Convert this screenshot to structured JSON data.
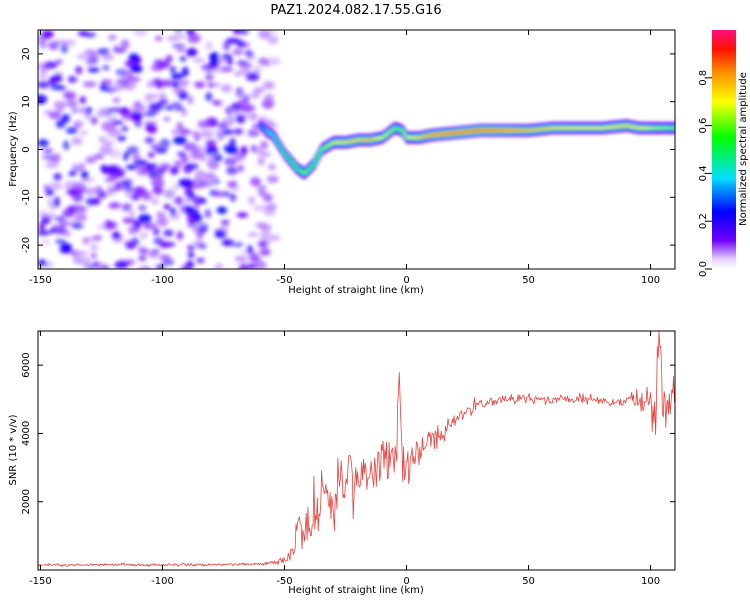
{
  "figure": {
    "title": "PAZ1.2024.082.17.55.G16"
  },
  "chart_data": [
    {
      "type": "heatmap",
      "name": "spectrogram",
      "xlabel": "Height of straight line (km)",
      "ylabel": "Frequency (Hz)",
      "xlim": [
        -151,
        110
      ],
      "ylim": [
        -25,
        25
      ],
      "xticks": [
        -150,
        -100,
        -50,
        0,
        50,
        100
      ],
      "yticks": [
        -20,
        -10,
        0,
        10,
        20
      ],
      "colorbar": {
        "label": "Normalized spectral amplitude",
        "range": [
          0,
          1
        ],
        "ticks": [
          0.0,
          0.2,
          0.4,
          0.6,
          0.8
        ],
        "colormap": [
          "#ffffff",
          "#7000ff",
          "#0000ff",
          "#00ffff",
          "#00ff00",
          "#ffff00",
          "#ff8000",
          "#ff0000",
          "#ff0080"
        ]
      },
      "noise_region": {
        "x_from": -150,
        "x_to": -53,
        "peak_amplitude": 0.25
      },
      "ridge": {
        "x": [
          -60,
          -55,
          -50,
          -45,
          -42,
          -38,
          -35,
          -30,
          -25,
          -20,
          -15,
          -10,
          -5,
          -2,
          0,
          5,
          10,
          20,
          30,
          40,
          50,
          60,
          70,
          80,
          90,
          95,
          100,
          110
        ],
        "frequency": [
          5,
          3,
          -1,
          -4,
          -5,
          -3,
          0,
          1.5,
          1.5,
          2,
          2,
          2.5,
          4.5,
          4,
          2.5,
          2.5,
          3,
          3.5,
          4,
          4,
          4,
          4.5,
          4.5,
          4.5,
          5,
          4.5,
          4.5,
          4.5
        ],
        "amplitude": [
          0.3,
          0.4,
          0.45,
          0.5,
          0.55,
          0.5,
          0.55,
          0.6,
          0.7,
          0.7,
          0.75,
          0.6,
          0.55,
          0.55,
          0.6,
          0.7,
          0.8,
          0.9,
          0.9,
          0.85,
          0.75,
          0.7,
          0.65,
          0.65,
          0.7,
          0.65,
          0.6,
          0.55
        ]
      }
    },
    {
      "type": "line",
      "name": "snr",
      "xlabel": "Height of straight line (km)",
      "ylabel": "SNR (10 * v/v)",
      "xlim": [
        -151,
        110
      ],
      "ylim": [
        0,
        7000
      ],
      "xticks": [
        -150,
        -100,
        -50,
        0,
        50,
        100
      ],
      "yticks": [
        2000,
        4000,
        6000
      ],
      "color": "#e8423d",
      "series": [
        {
          "x": [
            -151,
            -140,
            -130,
            -120,
            -110,
            -100,
            -90,
            -80,
            -70,
            -60,
            -55,
            -50,
            -47,
            -45,
            -43,
            -40,
            -38,
            -35,
            -32,
            -30,
            -28,
            -25,
            -22,
            -20,
            -18,
            -15,
            -12,
            -10,
            -8,
            -6,
            -4,
            -3,
            -2,
            0,
            2,
            5,
            8,
            10,
            15,
            20,
            25,
            30,
            35,
            40,
            45,
            50,
            55,
            60,
            65,
            70,
            75,
            80,
            85,
            90,
            93,
            95,
            97,
            100,
            102,
            103,
            105,
            107,
            110
          ],
          "y": [
            150,
            150,
            150,
            150,
            150,
            140,
            160,
            150,
            170,
            180,
            220,
            300,
            600,
            1100,
            1500,
            1200,
            1600,
            1900,
            2000,
            2100,
            2300,
            2500,
            2600,
            2700,
            2800,
            2900,
            3000,
            3100,
            3200,
            3300,
            3400,
            5900,
            3300,
            3000,
            3300,
            3500,
            3700,
            3800,
            4100,
            4400,
            4700,
            4850,
            4950,
            5000,
            5050,
            5050,
            5000,
            5000,
            5050,
            5000,
            5000,
            4950,
            4900,
            4950,
            5000,
            5100,
            5000,
            4900,
            4300,
            6900,
            5200,
            4800,
            5200
          ],
          "noise_amplitude": [
            40,
            40,
            40,
            40,
            40,
            40,
            40,
            40,
            40,
            40,
            50,
            200,
            300,
            500,
            700,
            700,
            800,
            800,
            900,
            900,
            900,
            900,
            900,
            800,
            800,
            700,
            700,
            700,
            650,
            650,
            600,
            200,
            600,
            550,
            500,
            450,
            400,
            350,
            300,
            250,
            200,
            150,
            140,
            130,
            130,
            130,
            130,
            130,
            130,
            130,
            130,
            130,
            130,
            150,
            250,
            300,
            350,
            500,
            800,
            800,
            800,
            700,
            500
          ]
        }
      ]
    }
  ]
}
